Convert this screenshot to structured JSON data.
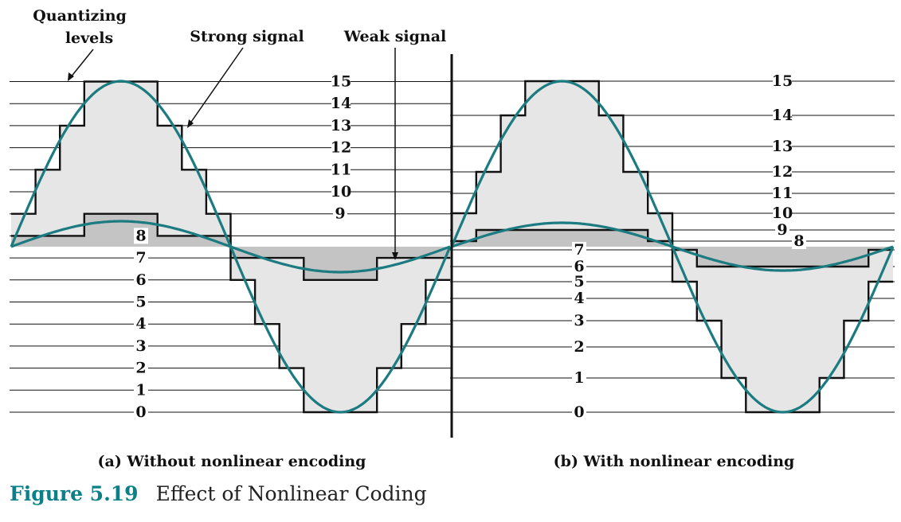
{
  "annotations": {
    "quantizing_levels": [
      "Quantizing",
      "levels"
    ],
    "strong_signal": "Strong signal",
    "weak_signal": "Weak signal"
  },
  "panel_a": {
    "caption": "(a) Without nonlinear encoding",
    "level_labels": [
      "0",
      "1",
      "2",
      "3",
      "4",
      "5",
      "6",
      "7",
      "8",
      "9",
      "10",
      "11",
      "12",
      "13",
      "14",
      "15"
    ],
    "levels": [
      0,
      1,
      2,
      3,
      4,
      5,
      6,
      7,
      8,
      9,
      10,
      11,
      12,
      13,
      14,
      15
    ]
  },
  "panel_b": {
    "caption": "(b) With nonlinear encoding",
    "level_labels": [
      "0",
      "1",
      "2",
      "3",
      "4",
      "5",
      "6",
      "7",
      "8",
      "9",
      "10",
      "11",
      "12",
      "13",
      "14",
      "15"
    ],
    "levels": [
      0,
      1,
      2,
      3,
      4,
      5,
      6,
      7,
      8,
      9,
      10,
      11,
      12,
      13,
      14,
      15
    ]
  },
  "figure": {
    "number": "Figure 5.19",
    "title": "Effect of Nonlinear Coding"
  },
  "colors": {
    "signal": "#1b7b80",
    "strong_fill": "#e6e6e6",
    "weak_fill": "#c4c4c4",
    "caption_accent": "#0b8088"
  }
}
